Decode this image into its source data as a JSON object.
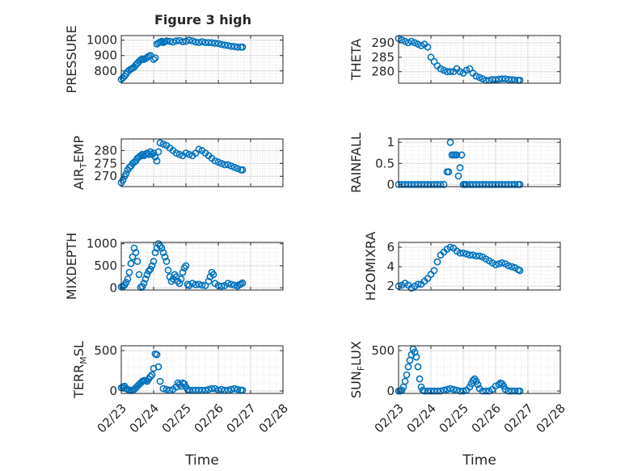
{
  "figure_title": "Figure 3 high",
  "x_axis": {
    "label": "Time",
    "tick_labels": [
      "02/23",
      "02/24",
      "02/25",
      "02/26",
      "02/27",
      "02/28"
    ],
    "range": [
      "02/23",
      "02/28"
    ]
  },
  "colors": {
    "marker": "#0072BD",
    "grid": "#dcdcdc",
    "axis": "#262626"
  },
  "chart_data": [
    {
      "type": "scatter",
      "ylabel": "PRESSURE",
      "yticks": [
        800,
        900,
        1000
      ],
      "ylim": [
        720,
        1030
      ],
      "x": [
        0,
        0.05,
        0.1,
        0.15,
        0.2,
        0.25,
        0.3,
        0.35,
        0.4,
        0.45,
        0.5,
        0.55,
        0.6,
        0.65,
        0.7,
        0.75,
        0.8,
        0.85,
        0.9,
        1.0,
        1.05,
        1.1,
        1.15,
        1.2,
        1.25,
        1.3,
        1.35,
        1.4,
        1.5,
        1.6,
        1.7,
        1.8,
        1.9,
        2.0,
        2.1,
        2.2,
        2.3,
        2.4,
        2.5,
        2.6,
        2.7,
        2.8,
        2.9,
        3.0,
        3.1,
        3.2,
        3.3,
        3.4,
        3.5,
        3.6,
        3.7,
        3.75
      ],
      "y": [
        745,
        755,
        765,
        780,
        795,
        805,
        812,
        818,
        825,
        838,
        850,
        862,
        872,
        878,
        875,
        880,
        888,
        895,
        900,
        875,
        885,
        975,
        982,
        988,
        992,
        985,
        990,
        995,
        992,
        988,
        995,
        998,
        990,
        992,
        1000,
        995,
        988,
        985,
        990,
        985,
        985,
        983,
        980,
        978,
        972,
        968,
        965,
        960,
        958,
        955,
        955,
        955
      ]
    },
    {
      "type": "scatter",
      "ylabel": "THETA",
      "yticks": [
        280,
        285,
        290
      ],
      "ylim": [
        276,
        292.5
      ],
      "x": [
        0,
        0.1,
        0.2,
        0.3,
        0.4,
        0.5,
        0.6,
        0.7,
        0.8,
        0.9,
        1.0,
        1.1,
        1.2,
        1.3,
        1.4,
        1.5,
        1.6,
        1.7,
        1.8,
        1.9,
        2.0,
        2.1,
        2.2,
        2.3,
        2.4,
        2.5,
        2.6,
        2.7,
        2.8,
        2.9,
        3.0,
        3.1,
        3.2,
        3.3,
        3.4,
        3.5,
        3.6,
        3.7,
        3.75
      ],
      "y": [
        291.5,
        291,
        290.5,
        290,
        290.5,
        290,
        289.5,
        289,
        289.5,
        288.5,
        285,
        283.5,
        282,
        281,
        280.5,
        280,
        280,
        280,
        281,
        280,
        279.5,
        280.5,
        281,
        279.5,
        278.5,
        278,
        277.5,
        277,
        277,
        277.3,
        277.2,
        277.4,
        277.5,
        277.5,
        277.3,
        277.2,
        277.1,
        277,
        277
      ]
    },
    {
      "type": "scatter",
      "ylabel": "AIR_TEMP",
      "yticks": [
        270,
        275,
        280
      ],
      "ylim": [
        266,
        284.5
      ],
      "x": [
        0,
        0.05,
        0.1,
        0.15,
        0.2,
        0.25,
        0.3,
        0.35,
        0.4,
        0.45,
        0.5,
        0.55,
        0.6,
        0.65,
        0.7,
        0.75,
        0.8,
        0.85,
        0.9,
        0.95,
        1.0,
        1.05,
        1.1,
        1.15,
        1.2,
        1.3,
        1.4,
        1.5,
        1.6,
        1.7,
        1.8,
        1.9,
        2.0,
        2.1,
        2.2,
        2.3,
        2.4,
        2.5,
        2.6,
        2.7,
        2.8,
        2.9,
        3.0,
        3.1,
        3.2,
        3.3,
        3.4,
        3.5,
        3.6,
        3.7,
        3.75
      ],
      "y": [
        267.5,
        268.5,
        270,
        271,
        272.5,
        273.5,
        274,
        275,
        275.5,
        276,
        277,
        277.5,
        278,
        278.5,
        278,
        278.5,
        279,
        278.5,
        279.5,
        278.5,
        279,
        277.5,
        276,
        279.5,
        283,
        282.5,
        282,
        281,
        280,
        279,
        278.5,
        278,
        279,
        278.5,
        278,
        279,
        280.5,
        280,
        279,
        278,
        277,
        276,
        275.5,
        275,
        274.5,
        274.5,
        274,
        273.5,
        273,
        272.5,
        272.5
      ]
    },
    {
      "type": "scatter",
      "ylabel": "RAINFALL",
      "yticks": [
        0,
        0.5,
        1
      ],
      "ylim": [
        -0.05,
        1.08
      ],
      "x": [
        0,
        0.1,
        0.2,
        0.3,
        0.4,
        0.5,
        0.6,
        0.7,
        0.8,
        0.9,
        1.0,
        1.1,
        1.2,
        1.3,
        1.4,
        1.5,
        1.55,
        1.6,
        1.65,
        1.7,
        1.75,
        1.8,
        1.85,
        1.9,
        1.95,
        2.0,
        2.05,
        2.1,
        2.2,
        2.3,
        2.4,
        2.5,
        2.6,
        2.7,
        2.8,
        2.9,
        3.0,
        3.1,
        3.2,
        3.3,
        3.4,
        3.5,
        3.6,
        3.7,
        3.75
      ],
      "y": [
        0,
        0,
        0,
        0,
        0,
        0,
        0,
        0,
        0,
        0,
        0,
        0,
        0,
        0,
        0,
        0.3,
        0.3,
        1.0,
        0.7,
        0.7,
        0.7,
        0.7,
        0.2,
        0.4,
        0.7,
        0,
        0,
        0,
        0,
        0,
        0,
        0,
        0,
        0,
        0,
        0,
        0,
        0,
        0,
        0,
        0,
        0,
        0,
        0,
        0
      ]
    },
    {
      "type": "scatter",
      "ylabel": "MIXDEPTH",
      "yticks": [
        0,
        500,
        1000
      ],
      "ylim": [
        -50,
        1030
      ],
      "x": [
        0,
        0.05,
        0.1,
        0.15,
        0.2,
        0.25,
        0.3,
        0.35,
        0.4,
        0.45,
        0.5,
        0.55,
        0.6,
        0.65,
        0.7,
        0.75,
        0.8,
        0.85,
        0.9,
        0.95,
        1.0,
        1.05,
        1.1,
        1.15,
        1.2,
        1.25,
        1.3,
        1.35,
        1.4,
        1.45,
        1.5,
        1.55,
        1.6,
        1.65,
        1.7,
        1.75,
        1.8,
        1.85,
        1.9,
        1.95,
        2.0,
        2.05,
        2.1,
        2.2,
        2.3,
        2.4,
        2.5,
        2.6,
        2.7,
        2.75,
        2.8,
        2.85,
        2.9,
        3.0,
        3.1,
        3.2,
        3.3,
        3.4,
        3.5,
        3.6,
        3.65,
        3.7,
        3.75
      ],
      "y": [
        20,
        30,
        60,
        120,
        200,
        350,
        550,
        700,
        900,
        800,
        600,
        300,
        10,
        30,
        100,
        200,
        300,
        380,
        420,
        500,
        600,
        800,
        900,
        1000,
        950,
        900,
        800,
        700,
        600,
        400,
        250,
        150,
        200,
        300,
        250,
        150,
        100,
        200,
        350,
        450,
        500,
        80,
        50,
        100,
        70,
        80,
        60,
        50,
        150,
        250,
        350,
        300,
        100,
        50,
        40,
        50,
        100,
        80,
        60,
        40,
        70,
        90,
        110
      ]
    },
    {
      "type": "scatter",
      "ylabel": "H2OMIXRA",
      "yticks": [
        2,
        4,
        6
      ],
      "ylim": [
        1.6,
        6.5
      ],
      "x": [
        0,
        0.1,
        0.2,
        0.3,
        0.4,
        0.5,
        0.6,
        0.7,
        0.8,
        0.9,
        1.0,
        1.1,
        1.2,
        1.3,
        1.4,
        1.5,
        1.6,
        1.7,
        1.8,
        1.9,
        2.0,
        2.1,
        2.2,
        2.3,
        2.4,
        2.5,
        2.6,
        2.7,
        2.8,
        2.9,
        3.0,
        3.1,
        3.2,
        3.3,
        3.4,
        3.5,
        3.6,
        3.7,
        3.75
      ],
      "y": [
        2,
        2.1,
        2.3,
        2.1,
        1.8,
        2,
        2.2,
        2.2,
        2.5,
        2.8,
        3.2,
        3.6,
        4.5,
        5.2,
        5.5,
        5.8,
        6,
        5.9,
        5.6,
        5.4,
        5.4,
        5.3,
        5.2,
        5.2,
        5.1,
        5.1,
        5,
        4.8,
        4.6,
        4.4,
        4.2,
        4.3,
        4.4,
        4.3,
        4.1,
        4,
        3.9,
        3.7,
        3.6
      ]
    },
    {
      "type": "scatter",
      "ylabel": "TERR_MSL",
      "yticks": [
        0,
        500
      ],
      "ylim": [
        -30,
        560
      ],
      "x": [
        0,
        0.05,
        0.1,
        0.15,
        0.2,
        0.25,
        0.3,
        0.35,
        0.4,
        0.45,
        0.5,
        0.55,
        0.6,
        0.65,
        0.7,
        0.75,
        0.8,
        0.85,
        0.9,
        0.95,
        1.0,
        1.05,
        1.1,
        1.15,
        1.2,
        1.3,
        1.4,
        1.5,
        1.6,
        1.7,
        1.75,
        1.8,
        1.85,
        1.9,
        1.95,
        2.0,
        2.05,
        2.1,
        2.2,
        2.3,
        2.4,
        2.5,
        2.6,
        2.7,
        2.8,
        2.9,
        3.0,
        3.1,
        3.2,
        3.3,
        3.4,
        3.5,
        3.6,
        3.7,
        3.75
      ],
      "y": [
        40,
        50,
        60,
        30,
        20,
        10,
        5,
        10,
        20,
        40,
        60,
        80,
        100,
        120,
        130,
        130,
        120,
        150,
        180,
        200,
        280,
        460,
        450,
        300,
        120,
        30,
        20,
        10,
        20,
        50,
        100,
        80,
        60,
        100,
        90,
        50,
        20,
        10,
        10,
        10,
        10,
        10,
        10,
        20,
        30,
        30,
        10,
        20,
        10,
        10,
        20,
        30,
        20,
        10,
        10
      ]
    },
    {
      "type": "scatter",
      "ylabel": "SUN_FLUX",
      "yticks": [
        0,
        500
      ],
      "ylim": [
        -30,
        560
      ],
      "x": [
        0,
        0.05,
        0.1,
        0.15,
        0.2,
        0.25,
        0.3,
        0.35,
        0.4,
        0.45,
        0.5,
        0.55,
        0.6,
        0.65,
        0.7,
        0.75,
        0.8,
        0.9,
        1.0,
        1.1,
        1.2,
        1.3,
        1.4,
        1.5,
        1.6,
        1.7,
        1.8,
        1.9,
        2.0,
        2.1,
        2.2,
        2.25,
        2.3,
        2.35,
        2.4,
        2.45,
        2.5,
        2.6,
        2.7,
        2.8,
        2.9,
        3.0,
        3.1,
        3.15,
        3.2,
        3.25,
        3.3,
        3.4,
        3.5,
        3.6,
        3.7,
        3.75
      ],
      "y": [
        0,
        0,
        10,
        50,
        120,
        200,
        300,
        380,
        450,
        520,
        480,
        420,
        300,
        150,
        50,
        10,
        0,
        0,
        0,
        0,
        0,
        0,
        10,
        20,
        30,
        20,
        10,
        0,
        0,
        10,
        50,
        90,
        130,
        150,
        120,
        80,
        30,
        0,
        0,
        0,
        20,
        60,
        80,
        100,
        90,
        60,
        20,
        0,
        0,
        0,
        0,
        0
      ]
    }
  ]
}
